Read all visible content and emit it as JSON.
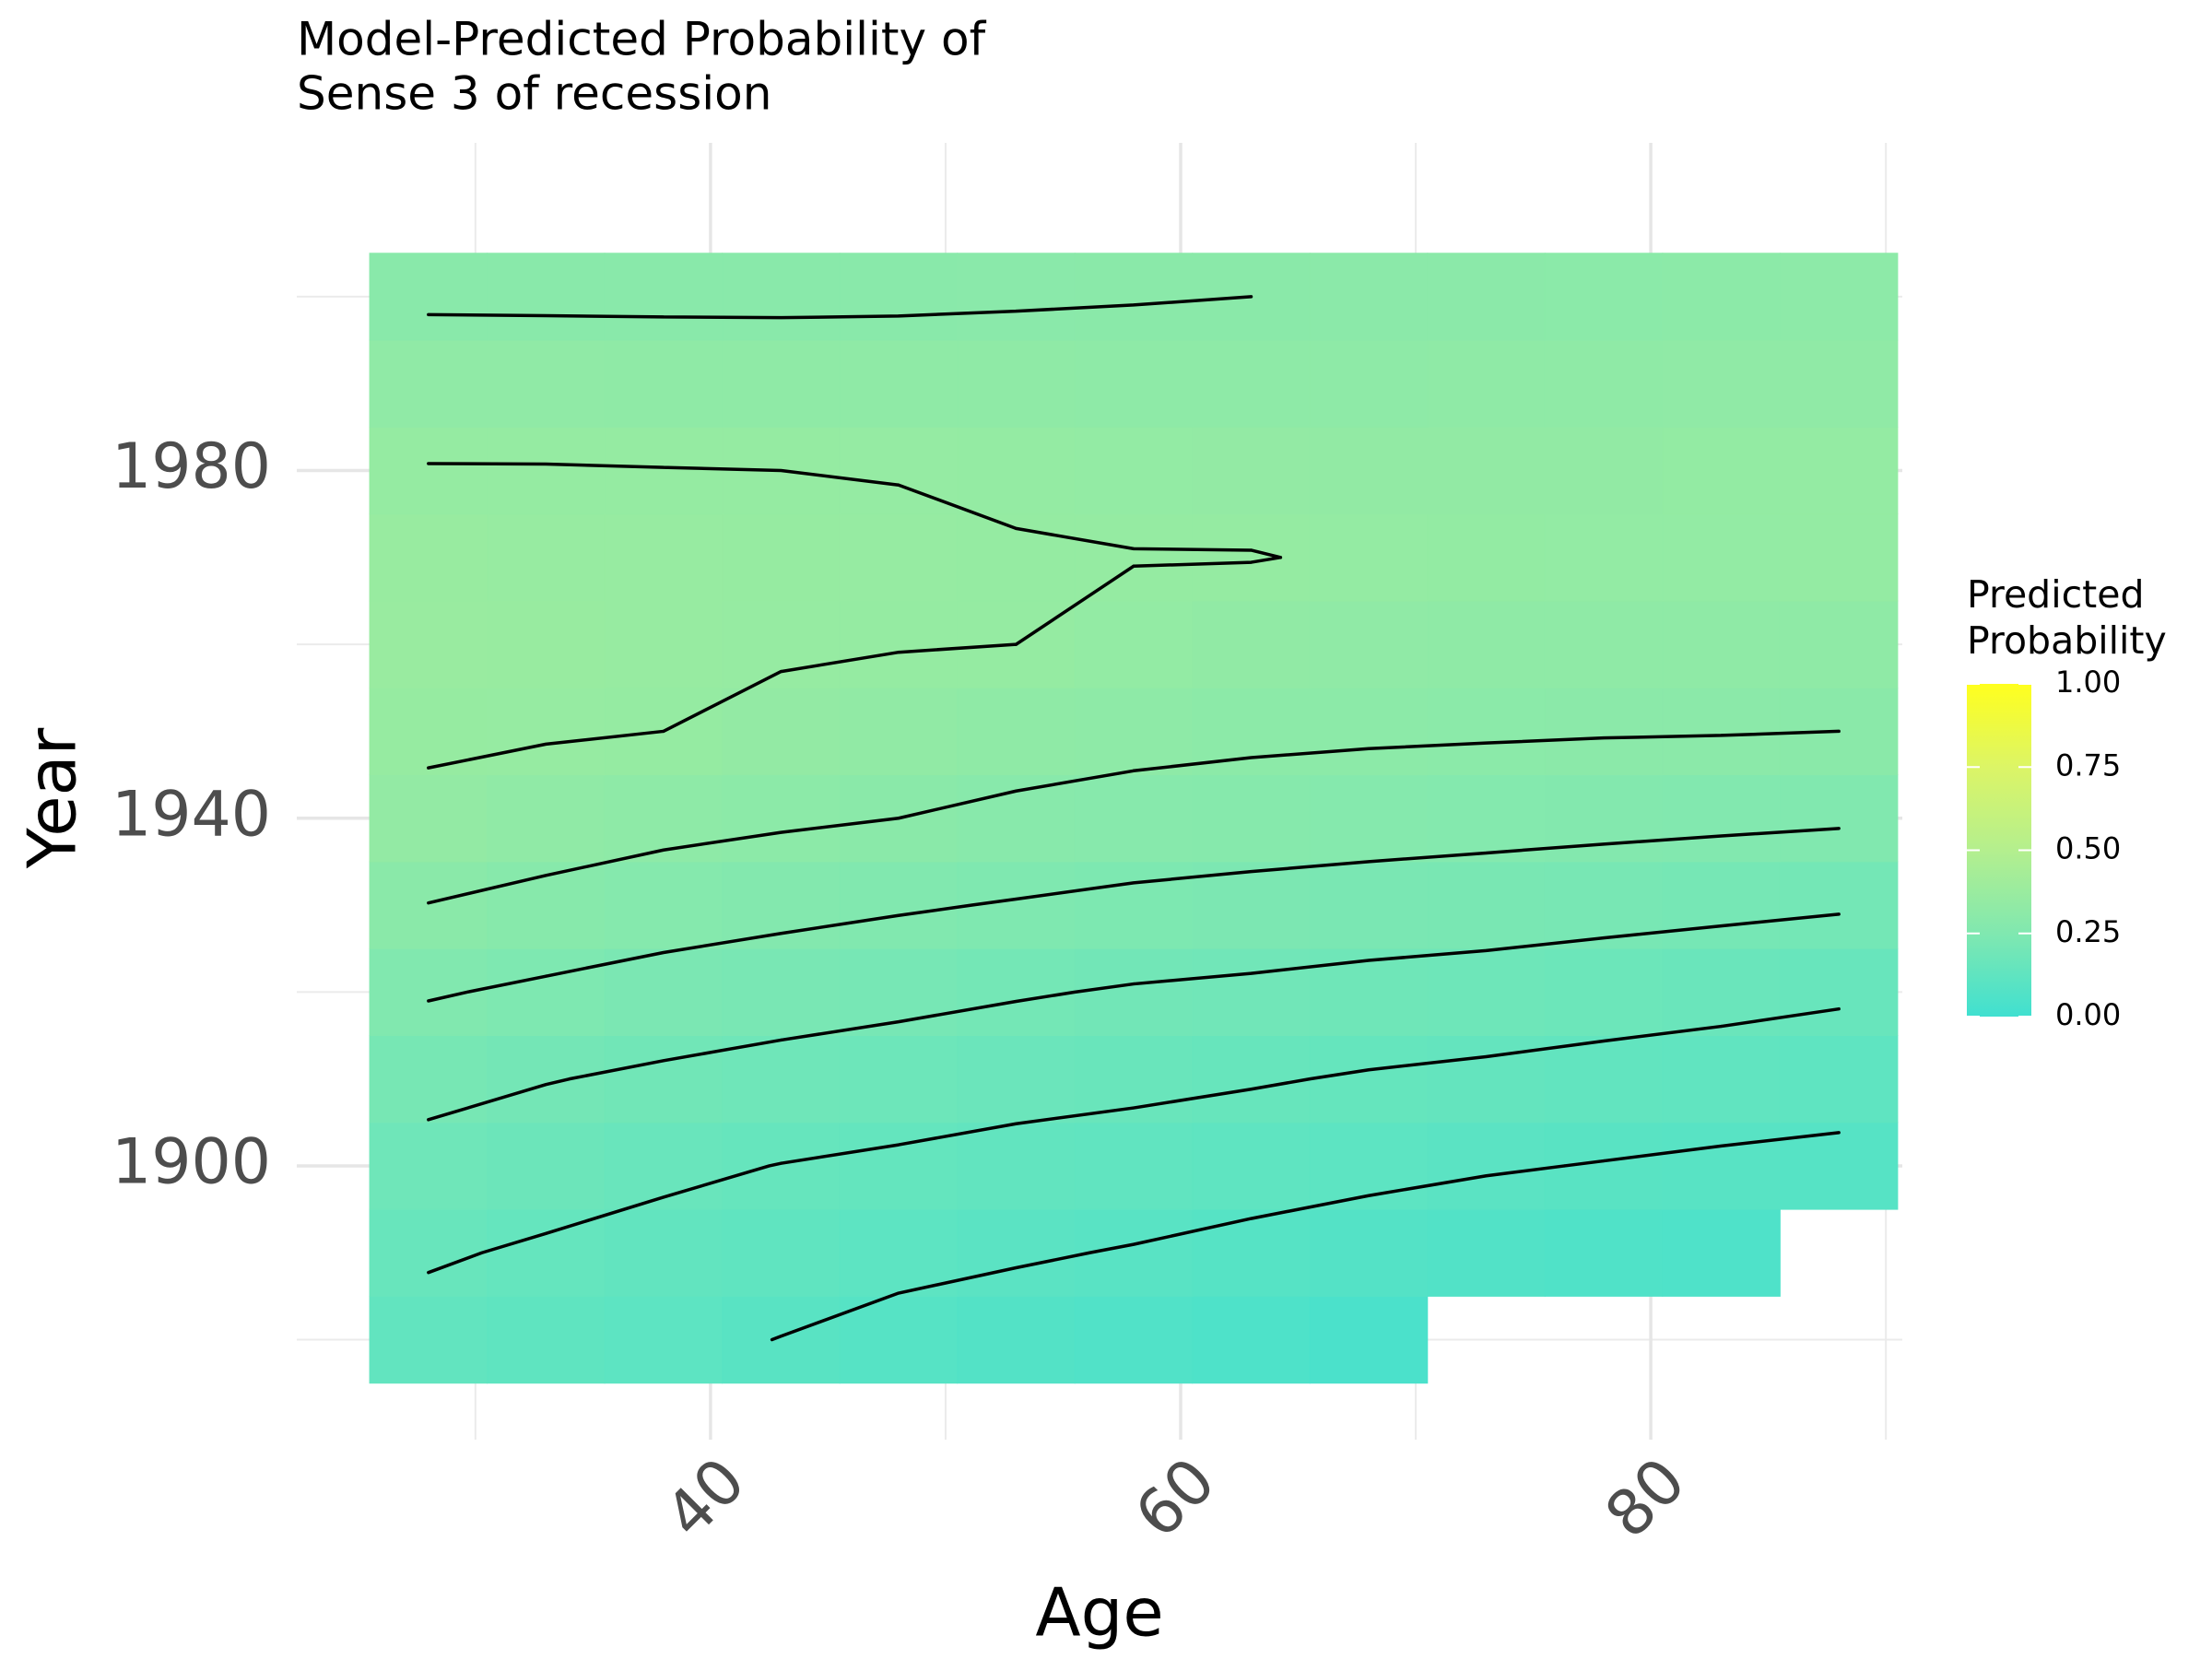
{
  "chart_data": {
    "type": "heatmap",
    "title": [
      "Model-Predicted Probability of",
      "Sense 3 of recession"
    ],
    "x_label": "Age",
    "y_label": "Year",
    "legend_title": [
      "Predicted",
      "Probability"
    ],
    "x": [
      28,
      33,
      38,
      43,
      48,
      53,
      58,
      63,
      68,
      73,
      78,
      83,
      88
    ],
    "y": [
      1880,
      1890,
      1900,
      1910,
      1920,
      1930,
      1940,
      1950,
      1960,
      1970,
      1980,
      1990,
      2000
    ],
    "z": [
      [
        0.133,
        0.122,
        0.112,
        0.099,
        0.085,
        0.076,
        0.065,
        0.053,
        0.042,
        null,
        null,
        null,
        null
      ],
      [
        0.155,
        0.144,
        0.134,
        0.124,
        0.113,
        0.105,
        0.097,
        0.087,
        0.077,
        0.069,
        0.063,
        0.057,
        null
      ],
      [
        0.183,
        0.171,
        0.159,
        0.149,
        0.142,
        0.134,
        0.128,
        0.12,
        0.112,
        0.104,
        0.098,
        0.092,
        0.087
      ],
      [
        0.215,
        0.202,
        0.192,
        0.183,
        0.175,
        0.167,
        0.161,
        0.154,
        0.146,
        0.14,
        0.133,
        0.127,
        0.121
      ],
      [
        0.254,
        0.242,
        0.23,
        0.221,
        0.213,
        0.204,
        0.196,
        0.191,
        0.184,
        0.179,
        0.172,
        0.165,
        0.157
      ],
      [
        0.299,
        0.286,
        0.274,
        0.264,
        0.255,
        0.247,
        0.239,
        0.233,
        0.228,
        0.223,
        0.217,
        0.211,
        0.205
      ],
      [
        0.339,
        0.327,
        0.315,
        0.307,
        0.3,
        0.29,
        0.282,
        0.277,
        0.272,
        0.268,
        0.264,
        0.26,
        0.256
      ],
      [
        0.358,
        0.354,
        0.35,
        0.339,
        0.33,
        0.322,
        0.315,
        0.31,
        0.307,
        0.305,
        0.303,
        0.302,
        0.3
      ],
      [
        0.369,
        0.364,
        0.359,
        0.355,
        0.352,
        0.35,
        0.341,
        0.333,
        0.326,
        0.322,
        0.321,
        0.32,
        0.322
      ],
      [
        0.364,
        0.362,
        0.36,
        0.358,
        0.355,
        0.353,
        0.351,
        0.351,
        0.347,
        0.342,
        0.34,
        0.34,
        0.344
      ],
      [
        0.352,
        0.352,
        0.351,
        0.35,
        0.349,
        0.344,
        0.341,
        0.339,
        0.335,
        0.336,
        0.338,
        0.342,
        0.345
      ],
      [
        0.327,
        0.325,
        0.323,
        0.322,
        0.321,
        0.32,
        0.319,
        0.319,
        0.318,
        0.32,
        0.322,
        0.325,
        0.327
      ],
      [
        0.293,
        0.293,
        0.293,
        0.293,
        0.294,
        0.296,
        0.298,
        0.3,
        0.301,
        0.303,
        0.305,
        0.309,
        0.311
      ]
    ],
    "contour_levels": [
      0.1,
      0.15,
      0.2,
      0.25,
      0.3,
      0.35
    ],
    "contour_color": "#000000",
    "colorscale": [
      "#40e0d0",
      "#80e8b0",
      "#b4ef8e",
      "#dcf566",
      "#ffff1e"
    ],
    "zlim": [
      0,
      1
    ],
    "zticks": [
      {
        "value": 0,
        "label": "0.00"
      },
      {
        "value": 0.25,
        "label": "0.25"
      },
      {
        "value": 0.5,
        "label": "0.50"
      },
      {
        "value": 0.75,
        "label": "0.75"
      },
      {
        "value": 1,
        "label": "1.00"
      }
    ],
    "xlim": [
      22.4,
      90.7
    ],
    "ylim": [
      1868.5,
      2017.7
    ],
    "xticks": [
      40,
      60,
      80
    ],
    "yticks": [
      1900,
      1940,
      1980
    ],
    "x_minor_ticks": [
      30,
      50,
      70,
      90
    ],
    "y_minor_ticks": [
      1880,
      1920,
      1960,
      2000
    ],
    "grid": true
  }
}
